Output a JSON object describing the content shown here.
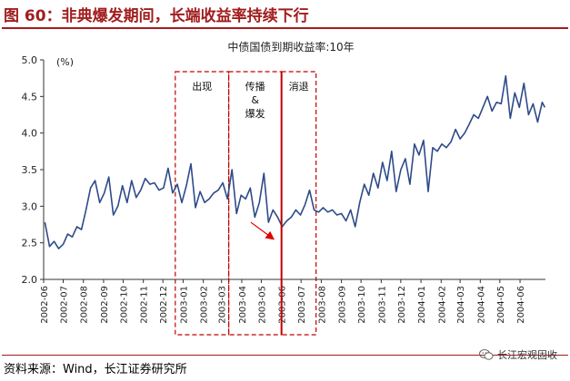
{
  "figure": {
    "title": "图 60：非典爆发期间，长端收益率持续下行",
    "source": "资料来源：Wind，长江证券研究所",
    "watermark": "长江宏观固收",
    "watermark_icon": "wechat-icon"
  },
  "colors": {
    "title": "#a11d1d",
    "line": "#2e4b88",
    "frame": "#c00000",
    "arrow": "#e00000"
  },
  "chart_data": {
    "type": "line",
    "title": "中债国债到期收益率:10年",
    "ylabel": "(%)",
    "ylim": [
      2.0,
      5.0
    ],
    "yticks": [
      "2.0",
      "2.5",
      "3.0",
      "3.5",
      "4.0",
      "4.5",
      "5.0"
    ],
    "xticks": [
      "2002-06",
      "2002-07",
      "2002-08",
      "2002-09",
      "2002-10",
      "2002-11",
      "2002-12",
      "2003-01",
      "2003-02",
      "2003-03",
      "2003-04",
      "2003-05",
      "2003-06",
      "2003-07",
      "2003-08",
      "2003-09",
      "2003-10",
      "2003-11",
      "2003-12",
      "2004-01",
      "2004-02",
      "2004-03",
      "2004-04",
      "2004-05",
      "2004-06"
    ],
    "grid": false,
    "legend": "none",
    "series": [
      {
        "name": "",
        "points": [
          [
            "2002-06-03",
            2.78
          ],
          [
            "2002-06-10",
            2.45
          ],
          [
            "2002-06-17",
            2.52
          ],
          [
            "2002-06-24",
            2.42
          ],
          [
            "2002-07-01",
            2.48
          ],
          [
            "2002-07-08",
            2.62
          ],
          [
            "2002-07-15",
            2.58
          ],
          [
            "2002-07-22",
            2.72
          ],
          [
            "2002-07-29",
            2.68
          ],
          [
            "2002-08-05",
            2.95
          ],
          [
            "2002-08-12",
            3.25
          ],
          [
            "2002-08-19",
            3.35
          ],
          [
            "2002-08-26",
            3.05
          ],
          [
            "2002-09-02",
            3.18
          ],
          [
            "2002-09-09",
            3.4
          ],
          [
            "2002-09-16",
            2.88
          ],
          [
            "2002-09-23",
            3.0
          ],
          [
            "2002-09-30",
            3.28
          ],
          [
            "2002-10-07",
            3.05
          ],
          [
            "2002-10-14",
            3.35
          ],
          [
            "2002-10-21",
            3.12
          ],
          [
            "2002-10-28",
            3.22
          ],
          [
            "2002-11-04",
            3.38
          ],
          [
            "2002-11-11",
            3.3
          ],
          [
            "2002-11-18",
            3.32
          ],
          [
            "2002-11-25",
            3.22
          ],
          [
            "2002-12-02",
            3.25
          ],
          [
            "2002-12-09",
            3.52
          ],
          [
            "2002-12-16",
            3.18
          ],
          [
            "2002-12-23",
            3.3
          ],
          [
            "2002-12-30",
            3.05
          ],
          [
            "2003-01-06",
            3.28
          ],
          [
            "2003-01-13",
            3.58
          ],
          [
            "2003-01-20",
            2.98
          ],
          [
            "2003-01-27",
            3.2
          ],
          [
            "2003-02-03",
            3.05
          ],
          [
            "2003-02-10",
            3.1
          ],
          [
            "2003-02-17",
            3.18
          ],
          [
            "2003-02-24",
            3.22
          ],
          [
            "2003-03-03",
            3.32
          ],
          [
            "2003-03-10",
            3.1
          ],
          [
            "2003-03-17",
            3.5
          ],
          [
            "2003-03-24",
            2.9
          ],
          [
            "2003-03-31",
            3.15
          ],
          [
            "2003-04-07",
            3.1
          ],
          [
            "2003-04-14",
            3.25
          ],
          [
            "2003-04-21",
            2.85
          ],
          [
            "2003-04-28",
            3.05
          ],
          [
            "2003-05-05",
            3.45
          ],
          [
            "2003-05-12",
            2.78
          ],
          [
            "2003-05-19",
            2.95
          ],
          [
            "2003-05-26",
            2.85
          ],
          [
            "2003-06-02",
            2.72
          ],
          [
            "2003-06-09",
            2.8
          ],
          [
            "2003-06-16",
            2.85
          ],
          [
            "2003-06-23",
            2.95
          ],
          [
            "2003-06-30",
            2.88
          ],
          [
            "2003-07-07",
            3.02
          ],
          [
            "2003-07-14",
            3.22
          ],
          [
            "2003-07-21",
            2.95
          ],
          [
            "2003-07-28",
            2.92
          ],
          [
            "2003-08-04",
            2.98
          ],
          [
            "2003-08-11",
            2.92
          ],
          [
            "2003-08-18",
            2.95
          ],
          [
            "2003-08-25",
            2.88
          ],
          [
            "2003-09-01",
            2.9
          ],
          [
            "2003-09-08",
            2.8
          ],
          [
            "2003-09-15",
            2.95
          ],
          [
            "2003-09-22",
            2.72
          ],
          [
            "2003-09-29",
            3.05
          ],
          [
            "2003-10-06",
            3.3
          ],
          [
            "2003-10-13",
            3.15
          ],
          [
            "2003-10-20",
            3.45
          ],
          [
            "2003-10-27",
            3.25
          ],
          [
            "2003-11-03",
            3.6
          ],
          [
            "2003-11-10",
            3.35
          ],
          [
            "2003-11-17",
            3.75
          ],
          [
            "2003-11-24",
            3.2
          ],
          [
            "2003-12-01",
            3.5
          ],
          [
            "2003-12-08",
            3.65
          ],
          [
            "2003-12-15",
            3.3
          ],
          [
            "2003-12-22",
            3.85
          ],
          [
            "2003-12-29",
            3.7
          ],
          [
            "2004-01-05",
            3.9
          ],
          [
            "2004-01-12",
            3.2
          ],
          [
            "2004-01-19",
            3.8
          ],
          [
            "2004-01-26",
            3.75
          ],
          [
            "2004-02-02",
            3.85
          ],
          [
            "2004-02-09",
            3.8
          ],
          [
            "2004-02-16",
            3.88
          ],
          [
            "2004-02-23",
            4.05
          ],
          [
            "2004-03-01",
            3.92
          ],
          [
            "2004-03-08",
            4.0
          ],
          [
            "2004-03-15",
            4.12
          ],
          [
            "2004-03-22",
            4.25
          ],
          [
            "2004-03-29",
            4.2
          ],
          [
            "2004-04-05",
            4.35
          ],
          [
            "2004-04-12",
            4.5
          ],
          [
            "2004-04-19",
            4.3
          ],
          [
            "2004-04-26",
            4.42
          ],
          [
            "2004-05-03",
            4.4
          ],
          [
            "2004-05-10",
            4.78
          ],
          [
            "2004-05-17",
            4.2
          ],
          [
            "2004-05-24",
            4.55
          ],
          [
            "2004-05-31",
            4.35
          ],
          [
            "2004-06-07",
            4.68
          ],
          [
            "2004-06-14",
            4.25
          ],
          [
            "2004-06-21",
            4.4
          ],
          [
            "2004-06-28",
            4.15
          ],
          [
            "2004-07-05",
            4.42
          ],
          [
            "2004-07-09",
            4.35
          ]
        ]
      }
    ],
    "annotations": [
      {
        "label": "出现",
        "from": "2002-12-20",
        "to": "2003-03-12",
        "style": "dashed"
      },
      {
        "label": "传播\n&\n爆发",
        "from": "2003-03-12",
        "to": "2003-06-01",
        "style": "dashed"
      },
      {
        "label": "消退",
        "from": "2003-06-01",
        "to": "2003-07-24",
        "style": "dashed"
      }
    ],
    "marker_line": "2003-06-01",
    "trend_arrow": {
      "from": [
        "2003-04-15",
        2.78
      ],
      "to": [
        "2003-05-20",
        2.55
      ]
    }
  }
}
